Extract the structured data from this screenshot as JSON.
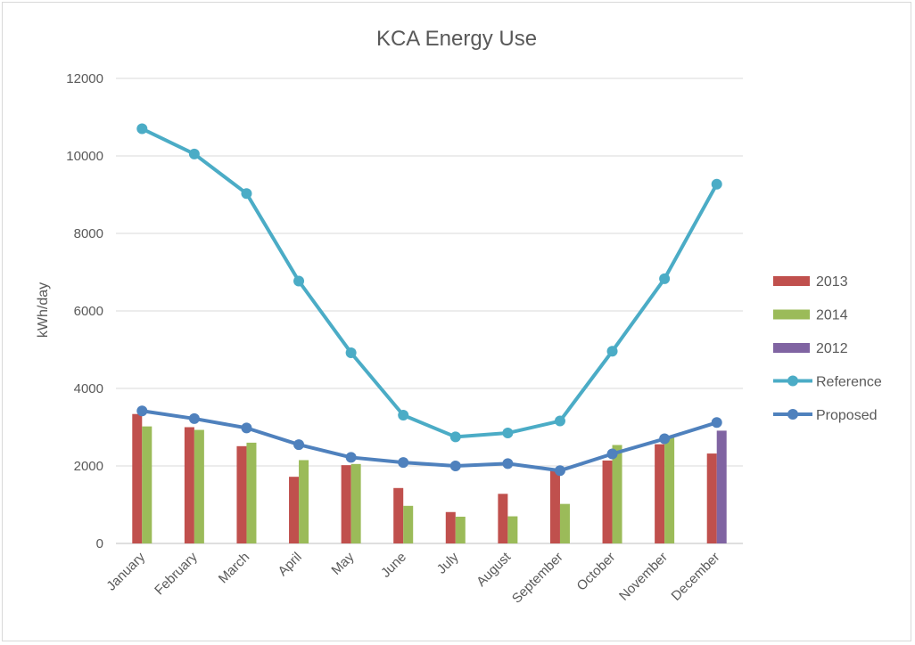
{
  "chart_data": {
    "type": "bar",
    "title": "KCA Energy Use",
    "xlabel": "",
    "ylabel": "kWh/day",
    "ylim": [
      0,
      12000
    ],
    "yticks": [
      0,
      2000,
      4000,
      6000,
      8000,
      10000,
      12000
    ],
    "grid": true,
    "legend_position": "right",
    "categories": [
      "January",
      "February",
      "March",
      "April",
      "May",
      "June",
      "July",
      "August",
      "September",
      "October",
      "November",
      "December"
    ],
    "series": [
      {
        "name": "2013",
        "kind": "bar",
        "color": "#c0504d",
        "values": [
          3340,
          3000,
          2510,
          1720,
          2020,
          1430,
          810,
          1280,
          1900,
          2140,
          2560,
          2320
        ]
      },
      {
        "name": "2014",
        "kind": "bar",
        "color": "#9bbb59",
        "values": [
          3020,
          2930,
          2600,
          2150,
          2050,
          970,
          690,
          700,
          1020,
          2540,
          2750,
          null
        ]
      },
      {
        "name": "2012",
        "kind": "bar",
        "color": "#8064a2",
        "values": [
          null,
          null,
          null,
          null,
          null,
          null,
          null,
          null,
          null,
          null,
          null,
          2910
        ]
      },
      {
        "name": "Reference",
        "kind": "line",
        "color": "#4bacc6",
        "values": [
          10700,
          10050,
          9030,
          6770,
          4920,
          3310,
          2750,
          2850,
          3160,
          4960,
          6830,
          9270
        ]
      },
      {
        "name": "Proposed",
        "kind": "line",
        "color": "#4f81bd",
        "values": [
          3420,
          3220,
          2980,
          2550,
          2220,
          2090,
          2000,
          2060,
          1880,
          2310,
          2700,
          3120
        ]
      }
    ]
  }
}
